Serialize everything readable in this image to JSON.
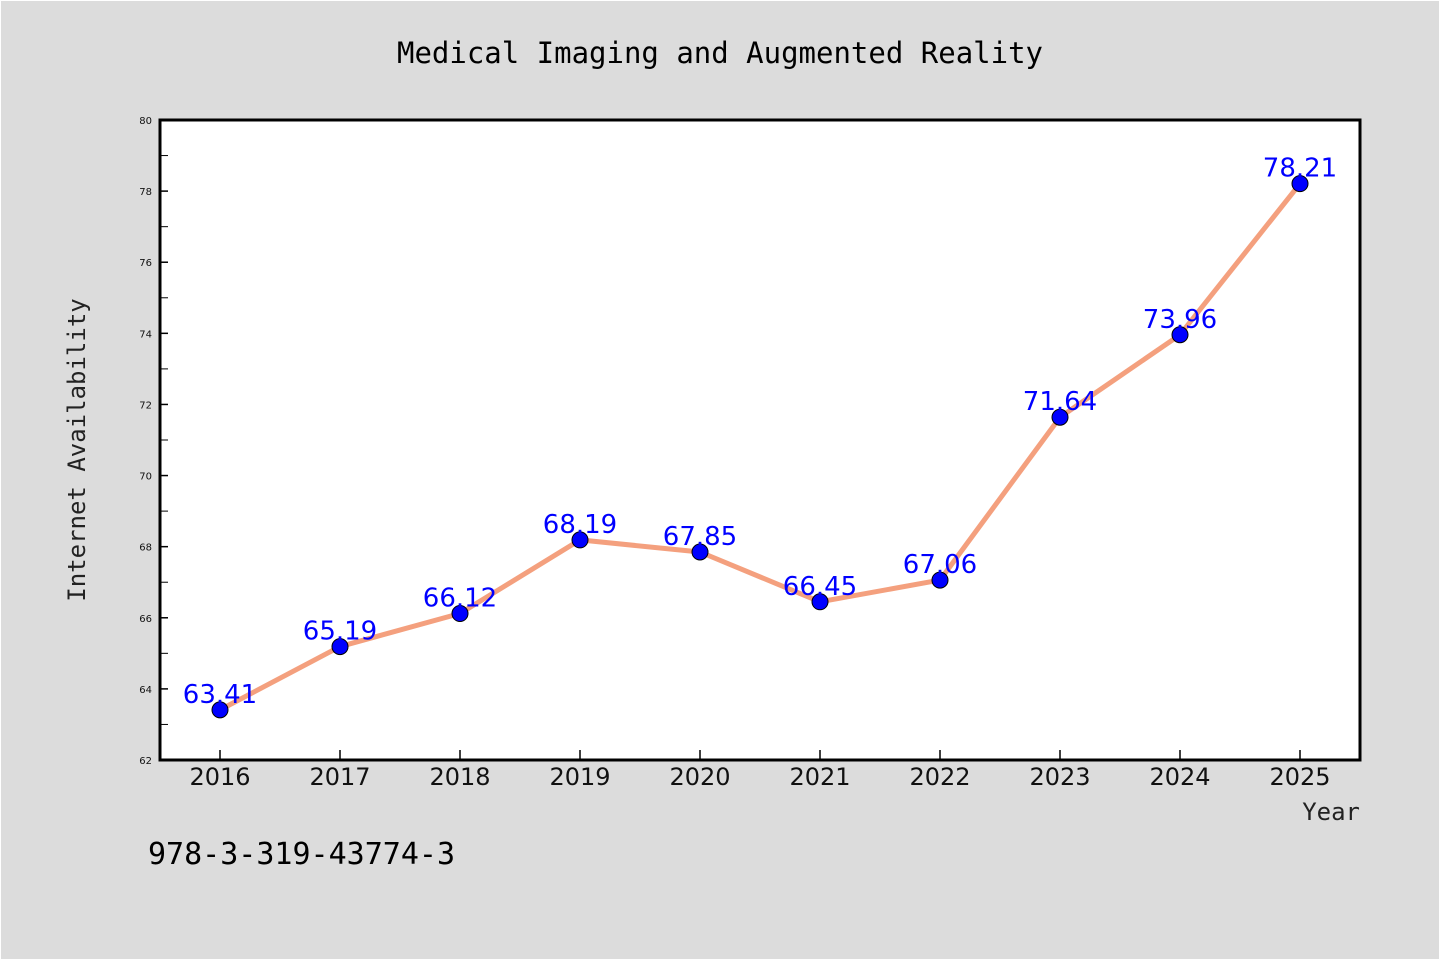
{
  "chart_data": {
    "type": "line",
    "title": "Medical Imaging and Augmented Reality",
    "xlabel": "Year",
    "ylabel": "Internet Availability",
    "categories": [
      "2016",
      "2017",
      "2018",
      "2019",
      "2020",
      "2021",
      "2022",
      "2023",
      "2024",
      "2025"
    ],
    "values": [
      63.41,
      65.19,
      66.12,
      68.19,
      67.85,
      66.45,
      67.06,
      71.64,
      73.96,
      78.21
    ],
    "data_labels": [
      "63.41",
      "65.19",
      "66.12",
      "68.19",
      "67.85",
      "66.45",
      "67.06",
      "71.64",
      "73.96",
      "78.21"
    ],
    "ylim": [
      62,
      80
    ],
    "yticks": [
      62,
      64,
      66,
      68,
      70,
      72,
      74,
      76,
      78,
      80
    ],
    "grid": false,
    "line_color": "#f4a07e",
    "marker_color": "#0000ff",
    "label_color": "#0000ff"
  },
  "footer": {
    "identifier": "978-3-319-43774-3"
  }
}
